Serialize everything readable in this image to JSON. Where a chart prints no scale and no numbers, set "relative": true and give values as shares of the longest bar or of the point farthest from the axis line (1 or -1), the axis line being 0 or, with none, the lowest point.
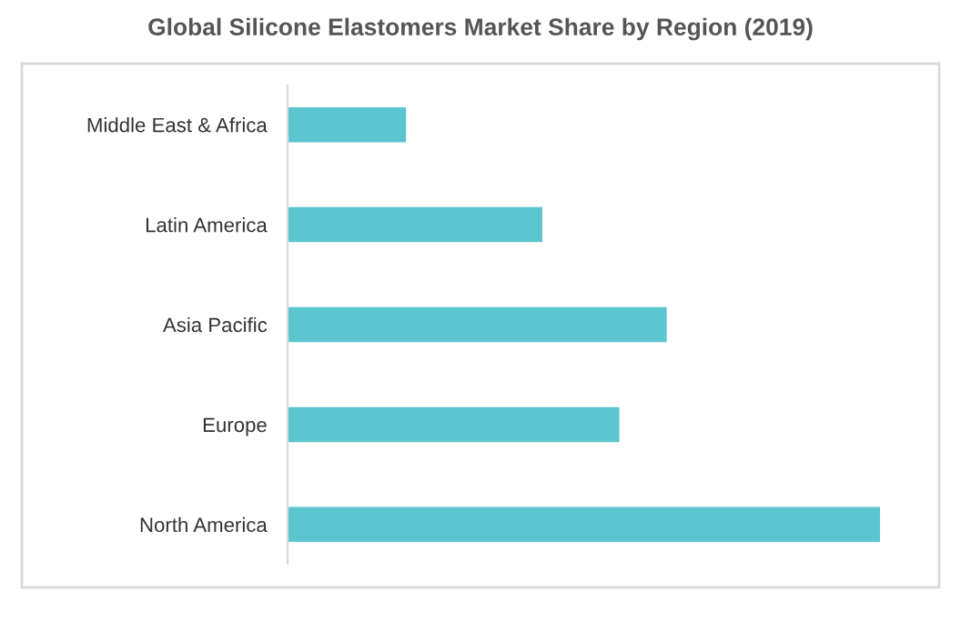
{
  "chart_data": {
    "type": "bar",
    "orientation": "horizontal",
    "relative": true,
    "title": "Global Silicone Elastomers Market Share by Region (2019)",
    "categories": [
      "Middle East & Africa",
      "Latin America",
      "Asia Pacific",
      "Europe",
      "North America"
    ],
    "values": [
      0.2,
      0.43,
      0.64,
      0.56,
      1
    ],
    "color": "#5bc5d0",
    "grid": false,
    "legend": false
  }
}
